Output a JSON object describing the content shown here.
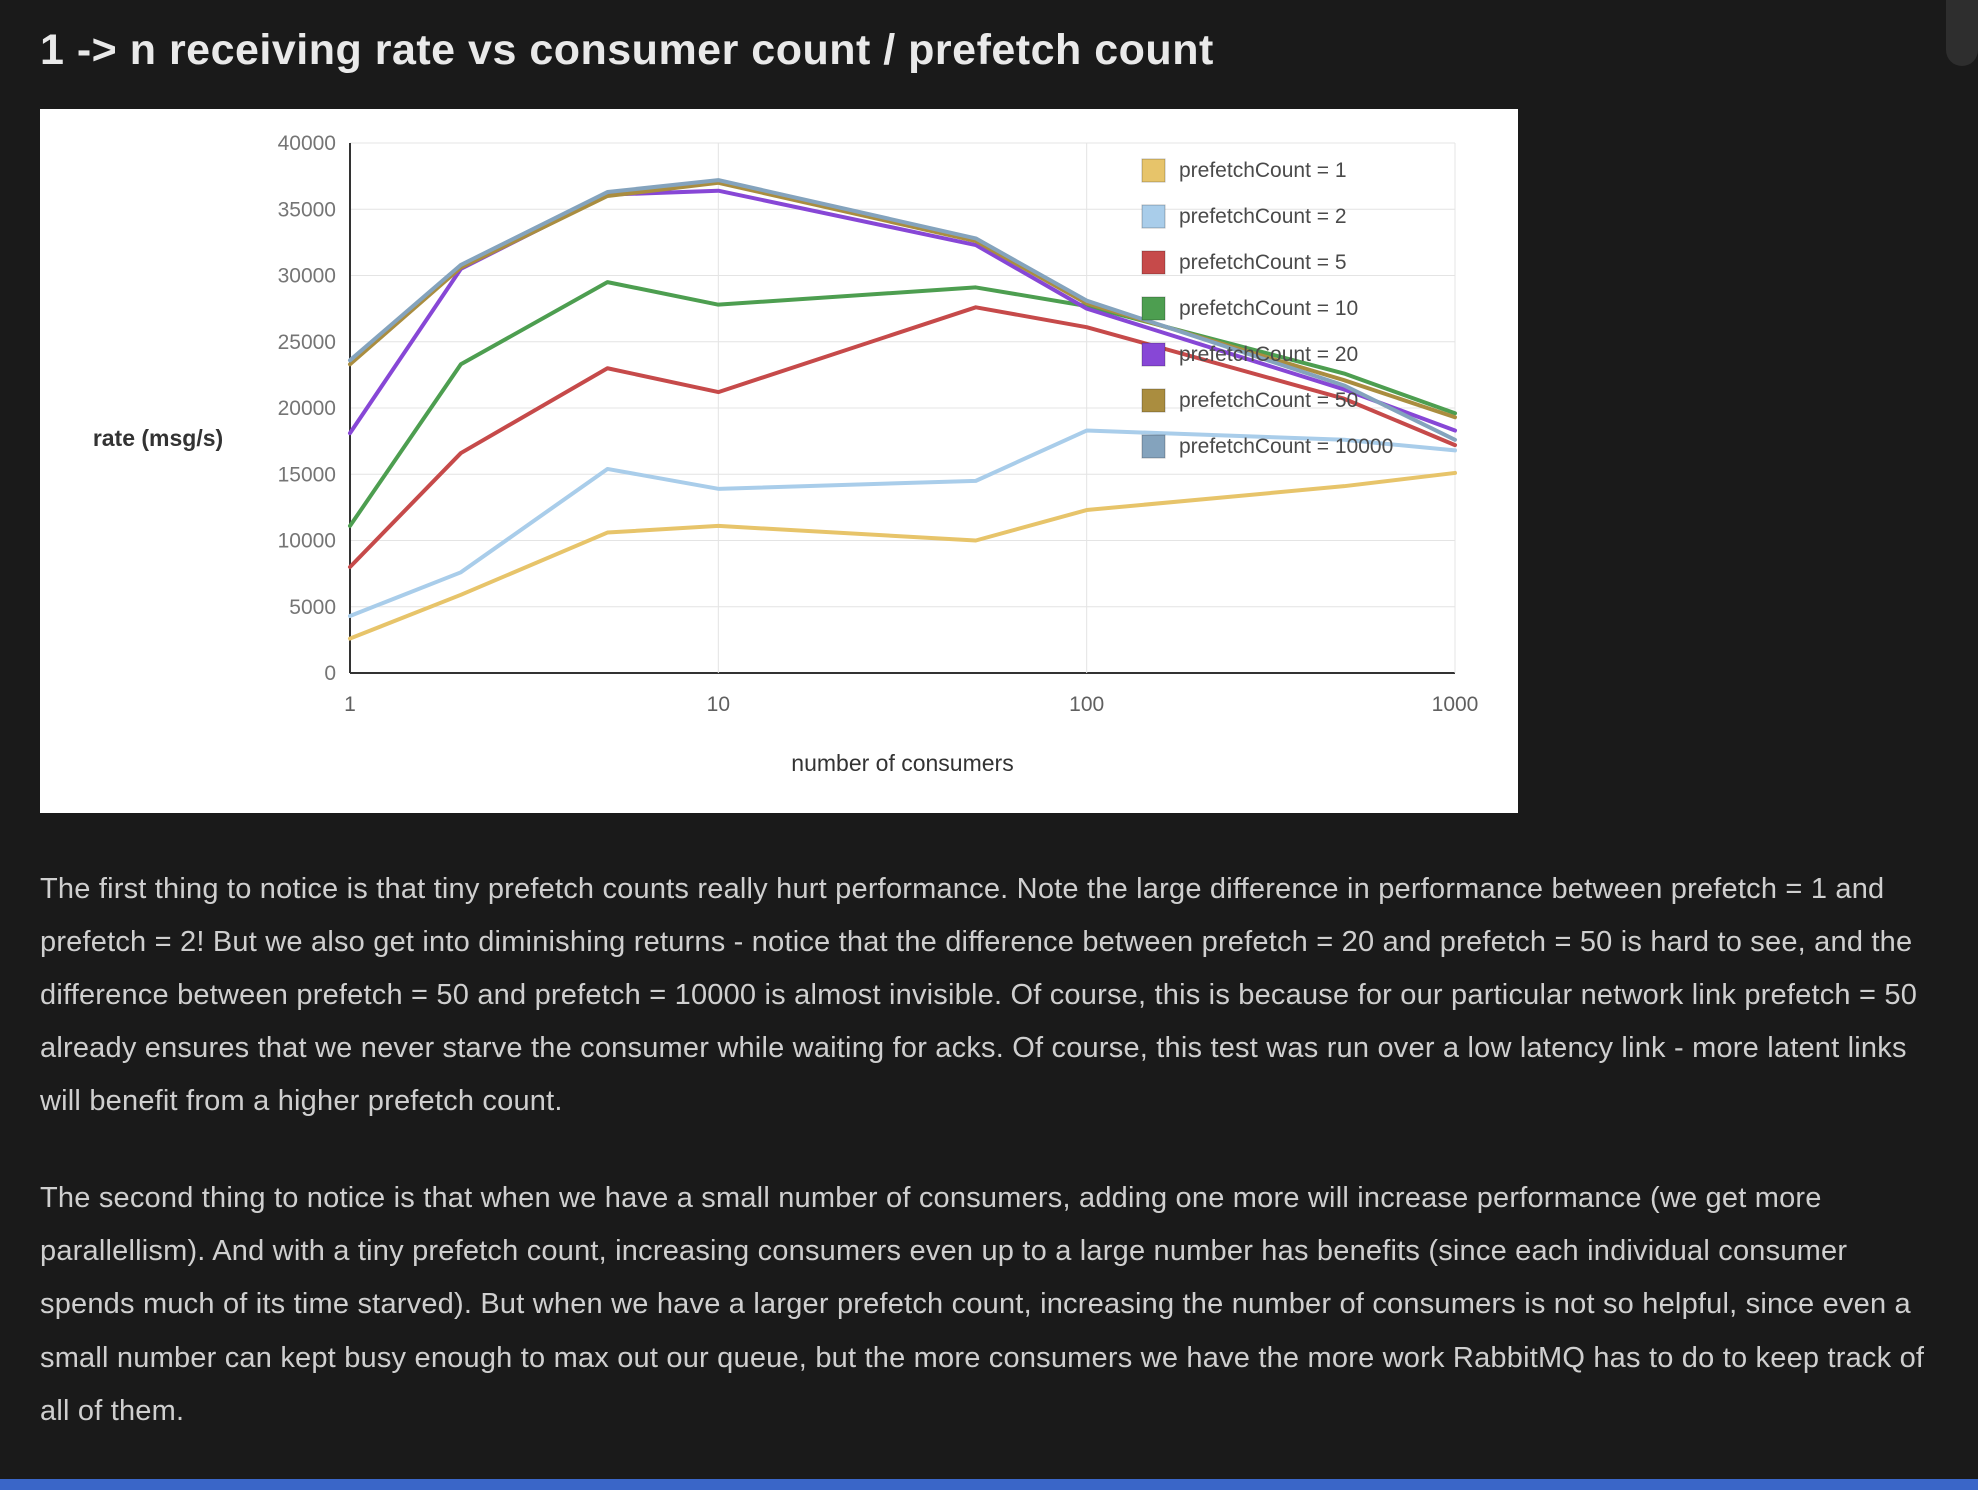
{
  "page": {
    "title": "1 -> n receiving rate vs consumer count / prefetch count"
  },
  "chart_data": {
    "type": "line",
    "title": "",
    "xlabel": "number of consumers",
    "ylabel": "rate (msg/s)",
    "x_scale": "log",
    "x": [
      1,
      2,
      5,
      10,
      50,
      100,
      500,
      1000
    ],
    "x_ticks": [
      "1",
      "10",
      "100",
      "1000"
    ],
    "ylim": [
      0,
      40000
    ],
    "y_tick_step": 5000,
    "grid": true,
    "legend_position": "top-right",
    "series": [
      {
        "name": "prefetchCount = 1",
        "color": "#e7c46a",
        "values": [
          2600,
          5900,
          10600,
          11100,
          10000,
          12300,
          14100,
          15100
        ]
      },
      {
        "name": "prefetchCount = 2",
        "color": "#a9cdea",
        "values": [
          4300,
          7600,
          15400,
          13900,
          14500,
          18300,
          17600,
          16800
        ]
      },
      {
        "name": "prefetchCount = 5",
        "color": "#c64a4a",
        "values": [
          8000,
          16600,
          23000,
          21200,
          27600,
          26100,
          20700,
          17200
        ]
      },
      {
        "name": "prefetchCount = 10",
        "color": "#4d9e50",
        "values": [
          11100,
          23300,
          29500,
          27800,
          29100,
          27700,
          22600,
          19600
        ]
      },
      {
        "name": "prefetchCount = 20",
        "color": "#8747d6",
        "values": [
          18100,
          30500,
          36100,
          36400,
          32300,
          27500,
          21400,
          18300
        ]
      },
      {
        "name": "prefetchCount = 50",
        "color": "#aa8d3f",
        "values": [
          23300,
          30600,
          36000,
          37000,
          32600,
          27900,
          22100,
          19300
        ]
      },
      {
        "name": "prefetchCount = 10000",
        "color": "#84a3bd",
        "values": [
          23600,
          30800,
          36300,
          37200,
          32800,
          28100,
          21700,
          17600
        ]
      }
    ]
  },
  "paragraphs": [
    "The first thing to notice is that tiny prefetch counts really hurt performance. Note the large difference in performance between prefetch = 1 and prefetch = 2! But we also get into diminishing returns - notice that the difference between prefetch = 20 and prefetch = 50 is hard to see, and the difference between prefetch = 50 and prefetch = 10000 is almost invisible. Of course, this is because for our particular network link prefetch = 50 already ensures that we never starve the consumer while waiting for acks. Of course, this test was run over a low latency link - more latent links will benefit from a higher prefetch count.",
    "The second thing to notice is that when we have a small number of consumers, adding one more will increase performance (we get more parallellism). And with a tiny prefetch count, increasing consumers even up to a large number has benefits (since each individual consumer spends much of its time starved). But when we have a larger prefetch count, increasing the number of consumers is not so helpful, since even a small number can kept busy enough to max out our queue, but the more consumers we have the more work RabbitMQ has to do to keep track of all of them."
  ]
}
